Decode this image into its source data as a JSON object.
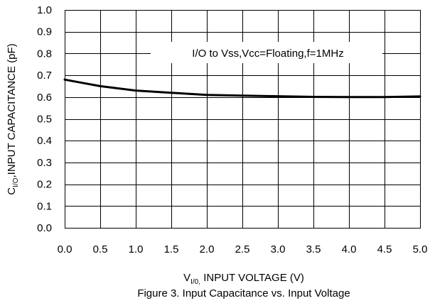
{
  "chart_data": {
    "type": "line",
    "title": "",
    "xlabel": {
      "prefix": "V",
      "sub": "I/0,",
      "rest": " INPUT VOLTAGE (V)"
    },
    "ylabel": {
      "prefix": "C",
      "sub": "I/O",
      "rest": ",INPUT CAPACITANCE (pF)"
    },
    "xlim": [
      0,
      5
    ],
    "ylim": [
      0,
      1
    ],
    "xticks": [
      "0.0",
      "0.5",
      "1.0",
      "1.5",
      "2.0",
      "2.5",
      "3.0",
      "3.5",
      "4.0",
      "4.5",
      "5.0"
    ],
    "yticks": [
      "0.0",
      "0.1",
      "0.2",
      "0.3",
      "0.4",
      "0.5",
      "0.6",
      "0.7",
      "0.8",
      "0.9",
      "1.0"
    ],
    "grid": true,
    "annotation": "I/O to Vss,Vcc=Floating,f=1MHz",
    "series": [
      {
        "color": "#000000",
        "x": [
          0.0,
          0.5,
          1.0,
          1.5,
          2.0,
          2.5,
          3.0,
          3.5,
          4.0,
          4.5,
          5.0
        ],
        "y": [
          0.68,
          0.65,
          0.63,
          0.62,
          0.61,
          0.607,
          0.604,
          0.601,
          0.6,
          0.6,
          0.603
        ]
      }
    ]
  },
  "caption": "Figure 3. Input Capacitance vs. Input Voltage"
}
